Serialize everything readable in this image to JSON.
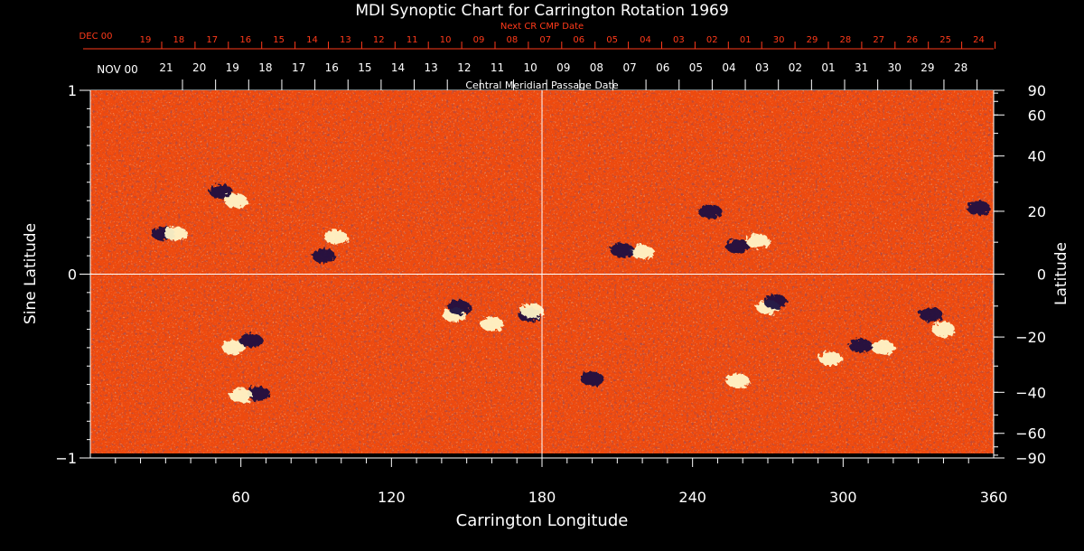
{
  "chart_data": {
    "type": "heatmap",
    "title": "MDI Synoptic Chart for Carrington Rotation 1969",
    "xlabel": "Carrington Longitude",
    "ylabel_left": "Sine Latitude",
    "ylabel_right": "Latitude",
    "xlim": [
      0,
      360
    ],
    "ylim": [
      -1,
      1
    ],
    "x_ticks": [
      60,
      120,
      180,
      240,
      300,
      360
    ],
    "y_ticks_left": [
      {
        "value": 1,
        "label": "1"
      },
      {
        "value": 0,
        "label": "0"
      },
      {
        "value": -1,
        "label": "−1"
      }
    ],
    "y_ticks_right_deg": [
      90,
      60,
      40,
      20,
      0,
      -20,
      -40,
      -60,
      -90
    ],
    "y_ticks_right_labels": [
      "90",
      "60",
      "40",
      "20",
      "0",
      "−20",
      "−40",
      "−60",
      "−90"
    ],
    "cmp_axis_label": "Central Meridian Passage Date",
    "cmp_month_label": "NOV 00",
    "cmp_dates": [
      "21",
      "20",
      "19",
      "18",
      "17",
      "16",
      "15",
      "14",
      "13",
      "12",
      "11",
      "10",
      "09",
      "08",
      "07",
      "06",
      "05",
      "04",
      "03",
      "02",
      "01",
      "31",
      "30",
      "29",
      "28"
    ],
    "next_cr_label": "Next CR CMP Date",
    "next_cr_month_label": "DEC 00",
    "next_cr_dates": [
      "19",
      "18",
      "17",
      "16",
      "15",
      "14",
      "13",
      "12",
      "11",
      "10",
      "09",
      "08",
      "07",
      "06",
      "05",
      "04",
      "03",
      "02",
      "01",
      "30",
      "29",
      "28",
      "27",
      "26",
      "25",
      "24"
    ],
    "grid": "crosshair at longitude 180 and sine latitude 0",
    "colormap": {
      "background": "#ee4a0e",
      "positive": "#fff6c8",
      "negative": "#1a1240"
    },
    "features": [
      {
        "lon": 57,
        "sinlat": -0.4,
        "polarity": "positive"
      },
      {
        "lon": 64,
        "sinlat": -0.36,
        "polarity": "negative"
      },
      {
        "lon": 29,
        "sinlat": 0.22,
        "polarity": "negative"
      },
      {
        "lon": 34,
        "sinlat": 0.22,
        "polarity": "positive"
      },
      {
        "lon": 52,
        "sinlat": 0.45,
        "polarity": "negative"
      },
      {
        "lon": 58,
        "sinlat": 0.4,
        "polarity": "positive"
      },
      {
        "lon": 93,
        "sinlat": 0.1,
        "polarity": "negative"
      },
      {
        "lon": 98,
        "sinlat": 0.2,
        "polarity": "positive"
      },
      {
        "lon": 145,
        "sinlat": -0.22,
        "polarity": "positive"
      },
      {
        "lon": 147,
        "sinlat": -0.18,
        "polarity": "negative"
      },
      {
        "lon": 175,
        "sinlat": -0.22,
        "polarity": "negative"
      },
      {
        "lon": 176,
        "sinlat": -0.2,
        "polarity": "positive"
      },
      {
        "lon": 160,
        "sinlat": -0.27,
        "polarity": "positive"
      },
      {
        "lon": 258,
        "sinlat": 0.15,
        "polarity": "negative"
      },
      {
        "lon": 266,
        "sinlat": 0.18,
        "polarity": "positive"
      },
      {
        "lon": 247,
        "sinlat": 0.34,
        "polarity": "negative"
      },
      {
        "lon": 220,
        "sinlat": 0.12,
        "polarity": "positive"
      },
      {
        "lon": 212,
        "sinlat": 0.13,
        "polarity": "negative"
      },
      {
        "lon": 270,
        "sinlat": -0.18,
        "polarity": "positive"
      },
      {
        "lon": 273,
        "sinlat": -0.15,
        "polarity": "negative"
      },
      {
        "lon": 295,
        "sinlat": -0.46,
        "polarity": "positive"
      },
      {
        "lon": 307,
        "sinlat": -0.39,
        "polarity": "negative"
      },
      {
        "lon": 316,
        "sinlat": -0.4,
        "polarity": "positive"
      },
      {
        "lon": 335,
        "sinlat": -0.22,
        "polarity": "negative"
      },
      {
        "lon": 340,
        "sinlat": -0.3,
        "polarity": "positive"
      },
      {
        "lon": 354,
        "sinlat": 0.36,
        "polarity": "negative"
      },
      {
        "lon": 258,
        "sinlat": -0.58,
        "polarity": "positive"
      },
      {
        "lon": 200,
        "sinlat": -0.57,
        "polarity": "negative"
      },
      {
        "lon": 67,
        "sinlat": -0.65,
        "polarity": "negative"
      },
      {
        "lon": 60,
        "sinlat": -0.66,
        "polarity": "positive"
      }
    ]
  }
}
